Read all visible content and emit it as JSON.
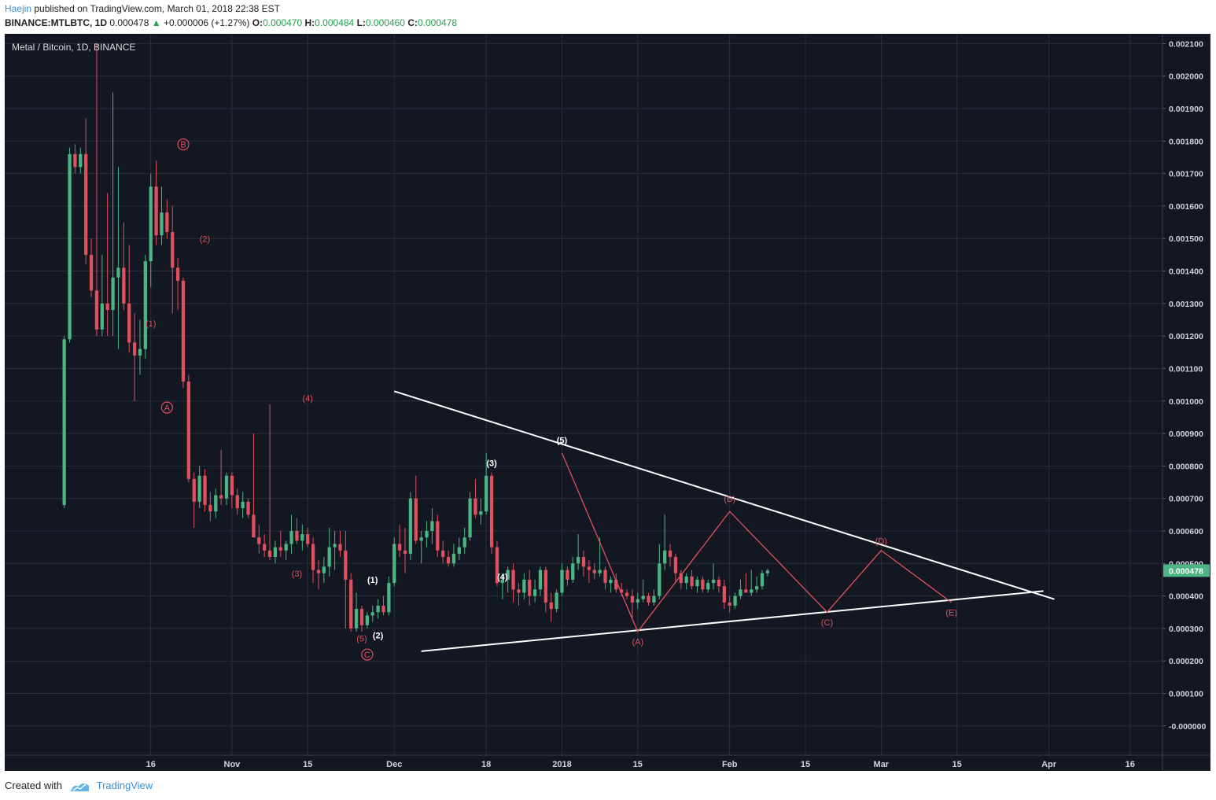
{
  "header": {
    "user": "Haejin",
    "published": " published on TradingView.com, March 01, 2018 22:38 EST",
    "symbol": "BINANCE:MTLBTC, 1D",
    "last": "0.000478",
    "change_arrow": "▲",
    "change": "+0.000006 (+1.27%)",
    "o_label": "O:",
    "o_value": "0.000470",
    "h_label": "H:",
    "h_value": "0.000484",
    "l_label": "L:",
    "l_value": "0.000460",
    "c_label": "C:",
    "c_value": "0.000478"
  },
  "chart_title": "Metal / Bitcoin, 1D, BINANCE",
  "footer": {
    "created": "Created with",
    "brand": "TradingView"
  },
  "colors": {
    "background": "#131722",
    "grid": "#2a2e39",
    "up": "#4bb584",
    "down": "#e0515f",
    "annotation_red": "#e0515f",
    "annotation_white": "#ffffff",
    "price_tag": "#4bb584"
  },
  "chart_data": {
    "type": "candlestick",
    "title": "Metal / Bitcoin, 1D, BINANCE",
    "ylim": [
      -9e-05,
      0.00213
    ],
    "y_ticks": [
      "0.002100",
      "0.002000",
      "0.001900",
      "0.001800",
      "0.001700",
      "0.001600",
      "0.001500",
      "0.001400",
      "0.001300",
      "0.001200",
      "0.001100",
      "0.001000",
      "0.000900",
      "0.000800",
      "0.000700",
      "0.000600",
      "0.000500",
      "0.000400",
      "0.000300",
      "0.000200",
      "0.000100",
      "-0.000000"
    ],
    "x_ticks": [
      {
        "label": "16",
        "day": 16
      },
      {
        "label": "Nov",
        "day": 31
      },
      {
        "label": "15",
        "day": 45
      },
      {
        "label": "Dec",
        "day": 61
      },
      {
        "label": "18",
        "day": 78
      },
      {
        "label": "2018",
        "day": 92
      },
      {
        "label": "15",
        "day": 106
      },
      {
        "label": "Feb",
        "day": 123
      },
      {
        "label": "15",
        "day": 137
      },
      {
        "label": "Mar",
        "day": 151
      },
      {
        "label": "15",
        "day": 165
      },
      {
        "label": "Apr",
        "day": 182
      },
      {
        "label": "16",
        "day": 197
      }
    ],
    "x_range": [
      -11,
      203
    ],
    "current_price": "0.000478",
    "candles": [
      [
        0.00068,
        0.0012,
        0.00067,
        0.00119
      ],
      [
        0.00119,
        0.00178,
        0.00118,
        0.00176
      ],
      [
        0.00176,
        0.00179,
        0.0017,
        0.00172
      ],
      [
        0.00172,
        0.00178,
        0.0017,
        0.00176
      ],
      [
        0.00176,
        0.00187,
        0.00142,
        0.00145
      ],
      [
        0.00145,
        0.0015,
        0.00132,
        0.00134
      ],
      [
        0.00134,
        0.0021,
        0.0012,
        0.00122
      ],
      [
        0.00122,
        0.00145,
        0.0012,
        0.0013
      ],
      [
        0.0013,
        0.00164,
        0.0012,
        0.00128
      ],
      [
        0.00128,
        0.00195,
        0.0012,
        0.00138
      ],
      [
        0.00138,
        0.00172,
        0.00116,
        0.00141
      ],
      [
        0.00141,
        0.00155,
        0.00128,
        0.0013
      ],
      [
        0.0013,
        0.00148,
        0.00115,
        0.00118
      ],
      [
        0.00118,
        0.00127,
        0.001,
        0.00114
      ],
      [
        0.00114,
        0.00125,
        0.00108,
        0.00116
      ],
      [
        0.00116,
        0.00145,
        0.00113,
        0.00143
      ],
      [
        0.00143,
        0.0017,
        0.00135,
        0.00166
      ],
      [
        0.00166,
        0.00174,
        0.00148,
        0.00151
      ],
      [
        0.00151,
        0.00166,
        0.00148,
        0.00158
      ],
      [
        0.00158,
        0.00162,
        0.0015,
        0.00152
      ],
      [
        0.00152,
        0.0016,
        0.00127,
        0.00141
      ],
      [
        0.00141,
        0.00144,
        0.00128,
        0.00137
      ],
      [
        0.00137,
        0.00138,
        0.00104,
        0.00106
      ],
      [
        0.00106,
        0.00108,
        0.00075,
        0.00076
      ],
      [
        0.00076,
        0.00078,
        0.00061,
        0.00069
      ],
      [
        0.00069,
        0.0008,
        0.00067,
        0.00077
      ],
      [
        0.00077,
        0.00079,
        0.00066,
        0.00068
      ],
      [
        0.00068,
        0.00072,
        0.00063,
        0.00066
      ],
      [
        0.00066,
        0.00073,
        0.00064,
        0.00071
      ],
      [
        0.00071,
        0.00085,
        0.00068,
        0.0007
      ],
      [
        0.0007,
        0.00078,
        0.00068,
        0.00077
      ],
      [
        0.00077,
        0.00078,
        0.00067,
        0.00071
      ],
      [
        0.00071,
        0.00073,
        0.00065,
        0.00067
      ],
      [
        0.00067,
        0.00072,
        0.00064,
        0.00069
      ],
      [
        0.00069,
        0.0007,
        0.00064,
        0.00065
      ],
      [
        0.00065,
        0.0009,
        0.0006,
        0.00058
      ],
      [
        0.00058,
        0.00062,
        0.00053,
        0.00056
      ],
      [
        0.00056,
        0.00059,
        0.00052,
        0.00054
      ],
      [
        0.00054,
        0.00099,
        0.00051,
        0.00052
      ],
      [
        0.00052,
        0.00057,
        0.0005,
        0.00055
      ],
      [
        0.00055,
        0.0006,
        0.00052,
        0.00054
      ],
      [
        0.00054,
        0.00057,
        0.00051,
        0.00056
      ],
      [
        0.00056,
        0.00065,
        0.00053,
        0.0006
      ],
      [
        0.0006,
        0.00064,
        0.00056,
        0.00057
      ],
      [
        0.00057,
        0.00062,
        0.00054,
        0.00059
      ],
      [
        0.00059,
        0.00061,
        0.00055,
        0.00056
      ],
      [
        0.00056,
        0.00058,
        0.00044,
        0.00048
      ],
      [
        0.00048,
        0.00051,
        0.00042,
        0.00047
      ],
      [
        0.00047,
        0.00052,
        0.00044,
        0.00049
      ],
      [
        0.00049,
        0.00061,
        0.00046,
        0.00055
      ],
      [
        0.00055,
        0.0006,
        0.00048,
        0.00056
      ],
      [
        0.00056,
        0.0006,
        0.00052,
        0.00054
      ],
      [
        0.00054,
        0.0006,
        0.0003,
        0.00045
      ],
      [
        0.00045,
        0.00047,
        0.00029,
        0.0003
      ],
      [
        0.0003,
        0.00041,
        0.00029,
        0.00036
      ],
      [
        0.00036,
        0.00037,
        0.00029,
        0.00031
      ],
      [
        0.00031,
        0.00035,
        0.0003,
        0.00034
      ],
      [
        0.00034,
        0.00037,
        0.00032,
        0.00035
      ],
      [
        0.00035,
        0.00039,
        0.00033,
        0.00037
      ],
      [
        0.00037,
        0.0004,
        0.00034,
        0.00035
      ],
      [
        0.00035,
        0.00046,
        0.00034,
        0.00044
      ],
      [
        0.00044,
        0.00058,
        0.00043,
        0.00056
      ],
      [
        0.00056,
        0.00062,
        0.00052,
        0.00054
      ],
      [
        0.00054,
        0.00061,
        0.00047,
        0.00053
      ],
      [
        0.00053,
        0.00072,
        0.00051,
        0.0007
      ],
      [
        0.0007,
        0.00077,
        0.00056,
        0.00057
      ],
      [
        0.00057,
        0.0006,
        0.0005,
        0.00058
      ],
      [
        0.00058,
        0.00063,
        0.00055,
        0.0006
      ],
      [
        0.0006,
        0.00067,
        0.00056,
        0.00063
      ],
      [
        0.00063,
        0.00065,
        0.00052,
        0.00054
      ],
      [
        0.00054,
        0.00057,
        0.0005,
        0.00052
      ],
      [
        0.00052,
        0.00054,
        0.00049,
        0.0005
      ],
      [
        0.0005,
        0.00056,
        0.00049,
        0.00053
      ],
      [
        0.00053,
        0.00058,
        0.00051,
        0.00055
      ],
      [
        0.00055,
        0.00061,
        0.00053,
        0.00058
      ],
      [
        0.00058,
        0.00072,
        0.00057,
        0.0007
      ],
      [
        0.0007,
        0.00076,
        0.00064,
        0.00065
      ],
      [
        0.00065,
        0.0007,
        0.00062,
        0.00066
      ],
      [
        0.00066,
        0.00084,
        0.00065,
        0.00077
      ],
      [
        0.00077,
        0.00078,
        0.00053,
        0.00055
      ],
      [
        0.00055,
        0.00057,
        0.00043,
        0.00044
      ],
      [
        0.00044,
        0.00047,
        0.00039,
        0.00045
      ],
      [
        0.00045,
        0.00049,
        0.00041,
        0.00048
      ],
      [
        0.00048,
        0.0005,
        0.00038,
        0.00042
      ],
      [
        0.00042,
        0.00044,
        0.00037,
        0.00041
      ],
      [
        0.00041,
        0.00047,
        0.00039,
        0.00045
      ],
      [
        0.00045,
        0.00048,
        0.00037,
        0.0004
      ],
      [
        0.0004,
        0.00045,
        0.00038,
        0.00042
      ],
      [
        0.00042,
        0.00049,
        0.0004,
        0.00048
      ],
      [
        0.00048,
        0.00049,
        0.00035,
        0.00038
      ],
      [
        0.00038,
        0.00041,
        0.00032,
        0.00036
      ],
      [
        0.00036,
        0.00042,
        0.00035,
        0.00041
      ],
      [
        0.00041,
        0.0005,
        0.0004,
        0.00048
      ],
      [
        0.00048,
        0.00049,
        0.00043,
        0.00045
      ],
      [
        0.00045,
        0.00052,
        0.00044,
        0.0005
      ],
      [
        0.0005,
        0.00059,
        0.00048,
        0.00052
      ],
      [
        0.00052,
        0.00054,
        0.00046,
        0.00049
      ],
      [
        0.00049,
        0.00051,
        0.00044,
        0.00048
      ],
      [
        0.00048,
        0.0005,
        0.00045,
        0.00047
      ],
      [
        0.00047,
        0.00058,
        0.00046,
        0.00048
      ],
      [
        0.00048,
        0.00049,
        0.00042,
        0.00044
      ],
      [
        0.00044,
        0.00046,
        0.00041,
        0.00045
      ],
      [
        0.00045,
        0.00047,
        0.00041,
        0.00042
      ],
      [
        0.00042,
        0.00044,
        0.0004,
        0.00041
      ],
      [
        0.00041,
        0.00042,
        0.00039,
        0.0004
      ],
      [
        0.0004,
        0.00042,
        0.00033,
        0.00038
      ],
      [
        0.00038,
        0.00041,
        0.00036,
        0.00039
      ],
      [
        0.00039,
        0.00045,
        0.00038,
        0.0004
      ],
      [
        0.0004,
        0.00041,
        0.00037,
        0.00038
      ],
      [
        0.00038,
        0.00042,
        0.00037,
        0.0004
      ],
      [
        0.0004,
        0.00056,
        0.00039,
        0.0005
      ],
      [
        0.0005,
        0.00065,
        0.00048,
        0.00054
      ],
      [
        0.00054,
        0.00056,
        0.00049,
        0.00052
      ],
      [
        0.00052,
        0.00053,
        0.00044,
        0.00047
      ],
      [
        0.00047,
        0.00048,
        0.00042,
        0.00044
      ],
      [
        0.00044,
        0.00047,
        0.00042,
        0.00046
      ],
      [
        0.00046,
        0.00048,
        0.00042,
        0.00043
      ],
      [
        0.00043,
        0.00046,
        0.00041,
        0.00045
      ],
      [
        0.00045,
        0.00046,
        0.00041,
        0.00042
      ],
      [
        0.00042,
        0.00045,
        0.00041,
        0.00044
      ],
      [
        0.00044,
        0.0005,
        0.00042,
        0.00045
      ],
      [
        0.00045,
        0.00046,
        0.00041,
        0.00043
      ],
      [
        0.00043,
        0.00045,
        0.00036,
        0.00038
      ],
      [
        0.00038,
        0.0004,
        0.00035,
        0.00037
      ],
      [
        0.00037,
        0.00041,
        0.00036,
        0.0004
      ],
      [
        0.0004,
        0.00045,
        0.00039,
        0.00042
      ],
      [
        0.00042,
        0.00047,
        0.00041,
        0.00041
      ],
      [
        0.00041,
        0.00048,
        0.0004,
        0.00042
      ],
      [
        0.00042,
        0.00046,
        0.00041,
        0.00043
      ],
      [
        0.00043,
        0.00048,
        0.00042,
        0.00047
      ],
      [
        0.00047,
        0.000484,
        0.00046,
        0.000478
      ]
    ],
    "trendlines": {
      "white": [
        {
          "from": [
            61,
            0.00103
          ],
          "to": [
            183,
            0.00039
          ]
        },
        {
          "from": [
            66,
            0.00023
          ],
          "to": [
            181,
            0.000415
          ]
        }
      ],
      "red_path": [
        [
          92,
          0.00084
        ],
        [
          106,
          0.00029
        ],
        [
          123,
          0.00066
        ],
        [
          141,
          0.00035
        ],
        [
          151,
          0.00054
        ],
        [
          164,
          0.00038
        ]
      ]
    },
    "wave_labels": [
      {
        "text": "B",
        "day": 22,
        "price": 0.00178,
        "color": "red",
        "circled": true
      },
      {
        "text": "A",
        "day": 19,
        "price": 0.00097,
        "color": "red",
        "circled": true
      },
      {
        "text": "C",
        "day": 56,
        "price": 0.00021,
        "color": "red",
        "circled": true
      },
      {
        "text": "(2)",
        "day": 26,
        "price": 0.00149,
        "color": "red"
      },
      {
        "text": "(1)",
        "day": 16,
        "price": 0.00123,
        "color": "red"
      },
      {
        "text": "(4)",
        "day": 45,
        "price": 0.001,
        "color": "red"
      },
      {
        "text": "(3)",
        "day": 43,
        "price": 0.00046,
        "color": "red"
      },
      {
        "text": "(5)",
        "day": 55,
        "price": 0.00026,
        "color": "red"
      },
      {
        "text": "(1)",
        "day": 57,
        "price": 0.00044,
        "color": "white"
      },
      {
        "text": "(2)",
        "day": 58,
        "price": 0.00027,
        "color": "white"
      },
      {
        "text": "(3)",
        "day": 79,
        "price": 0.0008,
        "color": "white"
      },
      {
        "text": "(4)",
        "day": 81,
        "price": 0.00045,
        "color": "white"
      },
      {
        "text": "(5)",
        "day": 92,
        "price": 0.00087,
        "color": "white"
      },
      {
        "text": "(A)",
        "day": 106,
        "price": 0.00025,
        "color": "red"
      },
      {
        "text": "(B)",
        "day": 123,
        "price": 0.00069,
        "color": "red"
      },
      {
        "text": "(C)",
        "day": 141,
        "price": 0.00031,
        "color": "red"
      },
      {
        "text": "(D)",
        "day": 151,
        "price": 0.00056,
        "color": "red"
      },
      {
        "text": "(E)",
        "day": 164,
        "price": 0.00034,
        "color": "red"
      }
    ]
  }
}
